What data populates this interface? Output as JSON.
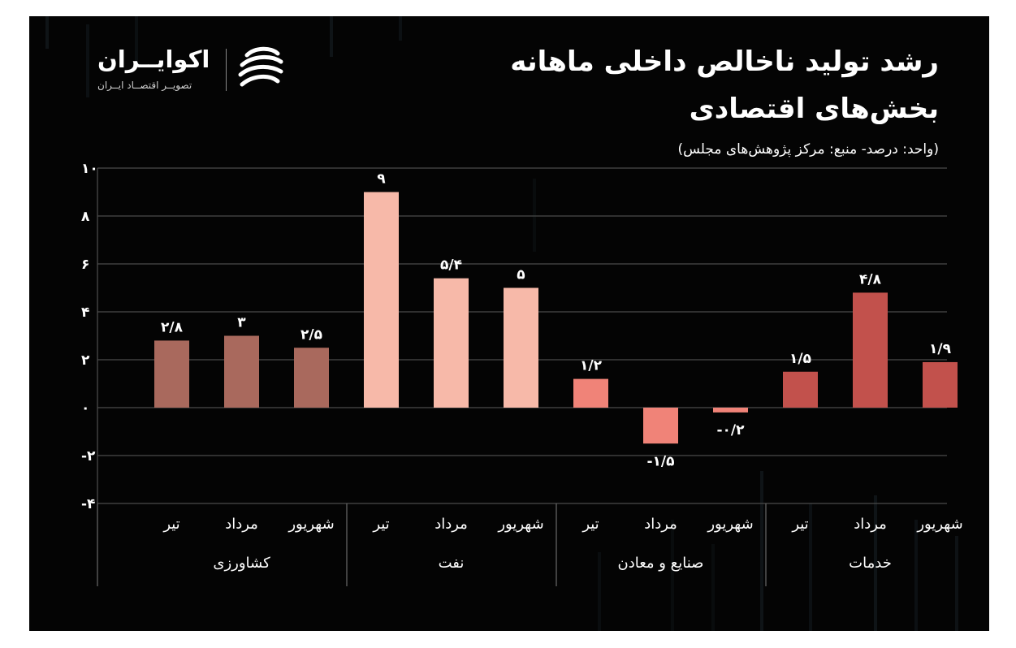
{
  "title_line1": "رشد تولید ناخالص داخلی ماهانه",
  "title_line2": "بخش‌های اقتصادی",
  "subtitle": "(واحد: درصد- منبع: مرکز پژوهش‌های مجلس)",
  "logo": {
    "name": "اکوایــران",
    "tagline": "تصویــر اقتصــاد ایــران"
  },
  "colors": {
    "background": "#040404",
    "grid": "#4a4a4a",
    "agriculture": "#a9695d",
    "oil": "#f7b9a9",
    "industry": "#f08378",
    "services": "#c2514c"
  },
  "chart_data": {
    "type": "bar",
    "ylim": [
      -4,
      10
    ],
    "yticks": [
      -4,
      -2,
      0,
      2,
      4,
      6,
      8,
      10
    ],
    "ytick_labels": [
      "-۴",
      "-۲",
      "۰",
      "۲",
      "۴",
      "۶",
      "۸",
      "۱۰"
    ],
    "grid": true,
    "groups": [
      {
        "name": "کشاورزی",
        "color": "#a9695d",
        "bars": [
          {
            "month": "تیر",
            "value": 2.8,
            "label": "۲/۸"
          },
          {
            "month": "مرداد",
            "value": 3,
            "label": "۳"
          },
          {
            "month": "شهریور",
            "value": 2.5,
            "label": "۲/۵"
          }
        ]
      },
      {
        "name": "نفت",
        "color": "#f7b9a9",
        "bars": [
          {
            "month": "تیر",
            "value": 9,
            "label": "۹"
          },
          {
            "month": "مرداد",
            "value": 5.4,
            "label": "۵/۴"
          },
          {
            "month": "شهریور",
            "value": 5,
            "label": "۵"
          }
        ]
      },
      {
        "name": "صنایع و معادن",
        "color": "#f08378",
        "bars": [
          {
            "month": "تیر",
            "value": 1.2,
            "label": "۱/۲"
          },
          {
            "month": "مرداد",
            "value": -1.5,
            "label": "-۱/۵"
          },
          {
            "month": "شهریور",
            "value": -0.2,
            "label": "-۰/۲"
          }
        ]
      },
      {
        "name": "خدمات",
        "color": "#c2514c",
        "bars": [
          {
            "month": "تیر",
            "value": 1.5,
            "label": "۱/۵"
          },
          {
            "month": "مرداد",
            "value": 4.8,
            "label": "۴/۸"
          },
          {
            "month": "شهریور",
            "value": 1.9,
            "label": "۱/۹"
          }
        ]
      }
    ]
  }
}
